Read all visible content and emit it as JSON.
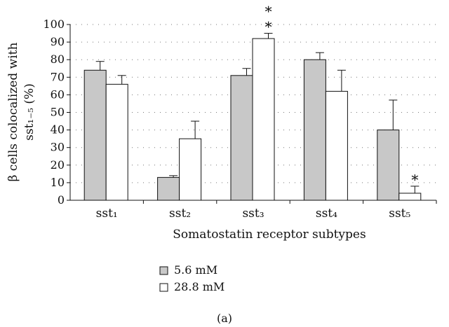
{
  "chart_data": {
    "type": "bar",
    "xlabel": "Somatostatin receptor subtypes",
    "ylabel": "β cells colocalized with sst₁₋₅ (%)",
    "ylabel_line1": "β cells colocalized with",
    "ylabel_line2": "sst₁₋₅ (%)",
    "ylim": [
      0,
      100
    ],
    "yticks": [
      0,
      10,
      20,
      30,
      40,
      50,
      60,
      70,
      80,
      90,
      100
    ],
    "grid": "dotted horizontal",
    "legend_position": "bottom-left",
    "panel_label": "(a)",
    "categories": [
      "sst₁",
      "sst₂",
      "sst₃",
      "sst₄",
      "sst₅"
    ],
    "series": [
      {
        "name": "5.6 mM",
        "color": "#c8c8c8",
        "values": [
          74,
          13,
          71,
          80,
          40
        ],
        "errors": [
          5,
          1,
          4,
          4,
          17
        ]
      },
      {
        "name": "28.8 mM",
        "color": "#ffffff",
        "values": [
          66,
          35,
          92,
          62,
          4
        ],
        "errors": [
          5,
          10,
          3,
          12,
          4
        ]
      }
    ],
    "annotations": [
      {
        "series": 1,
        "category": 2,
        "text": "∗∗"
      },
      {
        "series": 1,
        "category": 4,
        "text": "∗"
      }
    ]
  }
}
